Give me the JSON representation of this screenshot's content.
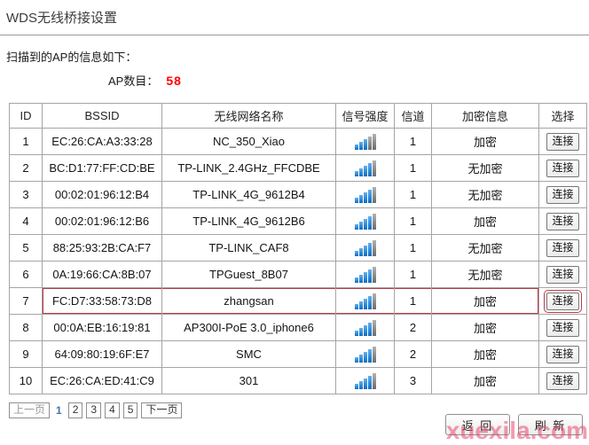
{
  "page": {
    "title": "WDS无线桥接设置",
    "intro": "扫描到的AP的信息如下：",
    "ap_count_label": "AP数目：",
    "ap_count": "58"
  },
  "table": {
    "headers": [
      "ID",
      "BSSID",
      "无线网络名称",
      "信号强度",
      "信道",
      "加密信息",
      "选择"
    ],
    "connect_label": "连接",
    "signal_total_bars": 5,
    "rows": [
      {
        "id": "1",
        "bssid": "EC:26:CA:A3:33:28",
        "ssid": "NC_350_Xiao",
        "signal": 3,
        "channel": "1",
        "security": "加密",
        "highlight": false
      },
      {
        "id": "2",
        "bssid": "BC:D1:77:FF:CD:BE",
        "ssid": "TP-LINK_2.4GHz_FFCDBE",
        "signal": 4,
        "channel": "1",
        "security": "无加密",
        "highlight": false
      },
      {
        "id": "3",
        "bssid": "00:02:01:96:12:B4",
        "ssid": "TP-LINK_4G_9612B4",
        "signal": 4,
        "channel": "1",
        "security": "无加密",
        "highlight": false
      },
      {
        "id": "4",
        "bssid": "00:02:01:96:12:B6",
        "ssid": "TP-LINK_4G_9612B6",
        "signal": 4,
        "channel": "1",
        "security": "加密",
        "highlight": false
      },
      {
        "id": "5",
        "bssid": "88:25:93:2B:CA:F7",
        "ssid": "TP-LINK_CAF8",
        "signal": 4,
        "channel": "1",
        "security": "无加密",
        "highlight": false
      },
      {
        "id": "6",
        "bssid": "0A:19:66:CA:8B:07",
        "ssid": "TPGuest_8B07",
        "signal": 4,
        "channel": "1",
        "security": "无加密",
        "highlight": false
      },
      {
        "id": "7",
        "bssid": "FC:D7:33:58:73:D8",
        "ssid": "zhangsan",
        "signal": 4,
        "channel": "1",
        "security": "加密",
        "highlight": true
      },
      {
        "id": "8",
        "bssid": "00:0A:EB:16:19:81",
        "ssid": "AP300I-PoE 3.0_iphone6",
        "signal": 4,
        "channel": "2",
        "security": "加密",
        "highlight": false
      },
      {
        "id": "9",
        "bssid": "64:09:80:19:6F:E7",
        "ssid": "SMC",
        "signal": 4,
        "channel": "2",
        "security": "加密",
        "highlight": false
      },
      {
        "id": "10",
        "bssid": "EC:26:CA:ED:41:C9",
        "ssid": "301",
        "signal": 4,
        "channel": "3",
        "security": "加密",
        "highlight": false
      }
    ]
  },
  "pagination": {
    "prev_label": "上一页",
    "pages": [
      "1",
      "2",
      "3",
      "4",
      "5"
    ],
    "current_page": "1",
    "next_label": "下一页"
  },
  "actions": {
    "back_label": "返 回",
    "refresh_label": "刷 新"
  },
  "watermark": "xuexila.com",
  "colors": {
    "ap_count_red": "#ff0000",
    "highlight_border_red": "#bb3c46",
    "signal_bar_blue": "#0e6cc0",
    "signal_bar_gray": "#8a8a8a",
    "current_page_blue": "#3f74ad"
  }
}
